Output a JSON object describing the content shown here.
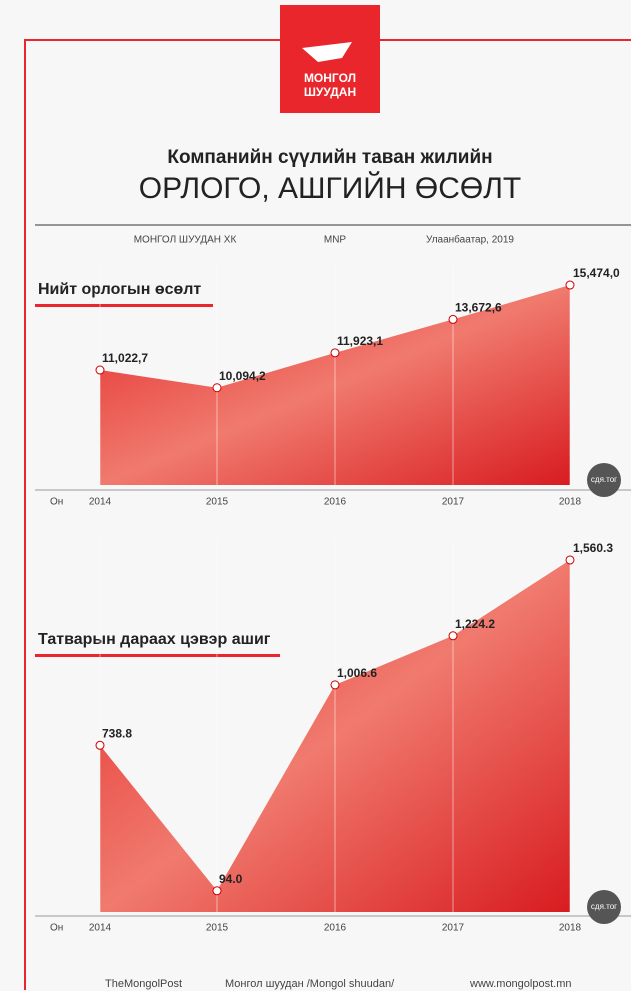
{
  "header": {
    "logo": [
      "МОНГОЛ",
      "ШУУДАН"
    ],
    "title_line1": "Компанийн сүүлийн таван жилийн",
    "title_line2": "ОРЛОГО, АШГИЙН ӨСӨЛТ",
    "meta": [
      "МОНГОЛ ШУУДАН ХК",
      "MNP",
      "Улаанбаатар, 2019"
    ]
  },
  "chart_data": [
    {
      "type": "area",
      "title": "Нийт орлогын өсөлт",
      "x_label": "Он",
      "categories": [
        "2014",
        "2015",
        "2016",
        "2017",
        "2018"
      ],
      "values": [
        11022.7,
        10094.2,
        11923.1,
        13672.6,
        15474.0
      ],
      "value_labels": [
        "11,022,7",
        "10,094,2",
        "11,923,1",
        "13,672,6",
        "15,474,0"
      ],
      "color": "#e8262b",
      "ylim": [
        5000,
        16000
      ],
      "badge": "сдя.тог"
    },
    {
      "type": "area",
      "title": "Татварын дараах цэвэр ашиг",
      "x_label": "Он",
      "categories": [
        "2014",
        "2015",
        "2016",
        "2017",
        "2018"
      ],
      "values": [
        738.8,
        94.0,
        1006.6,
        1224.2,
        1560.3
      ],
      "value_labels": [
        "738.8",
        "94.0",
        "1,006.6",
        "1,224.2",
        "1,560.3"
      ],
      "color": "#e8262b",
      "ylim": [
        0,
        1600
      ],
      "badge": "сдя.тог"
    }
  ],
  "footer": [
    "TheMongolPost",
    "Монгол шуудан /Mongol shuudan/",
    "www.mongolpost.mn"
  ]
}
